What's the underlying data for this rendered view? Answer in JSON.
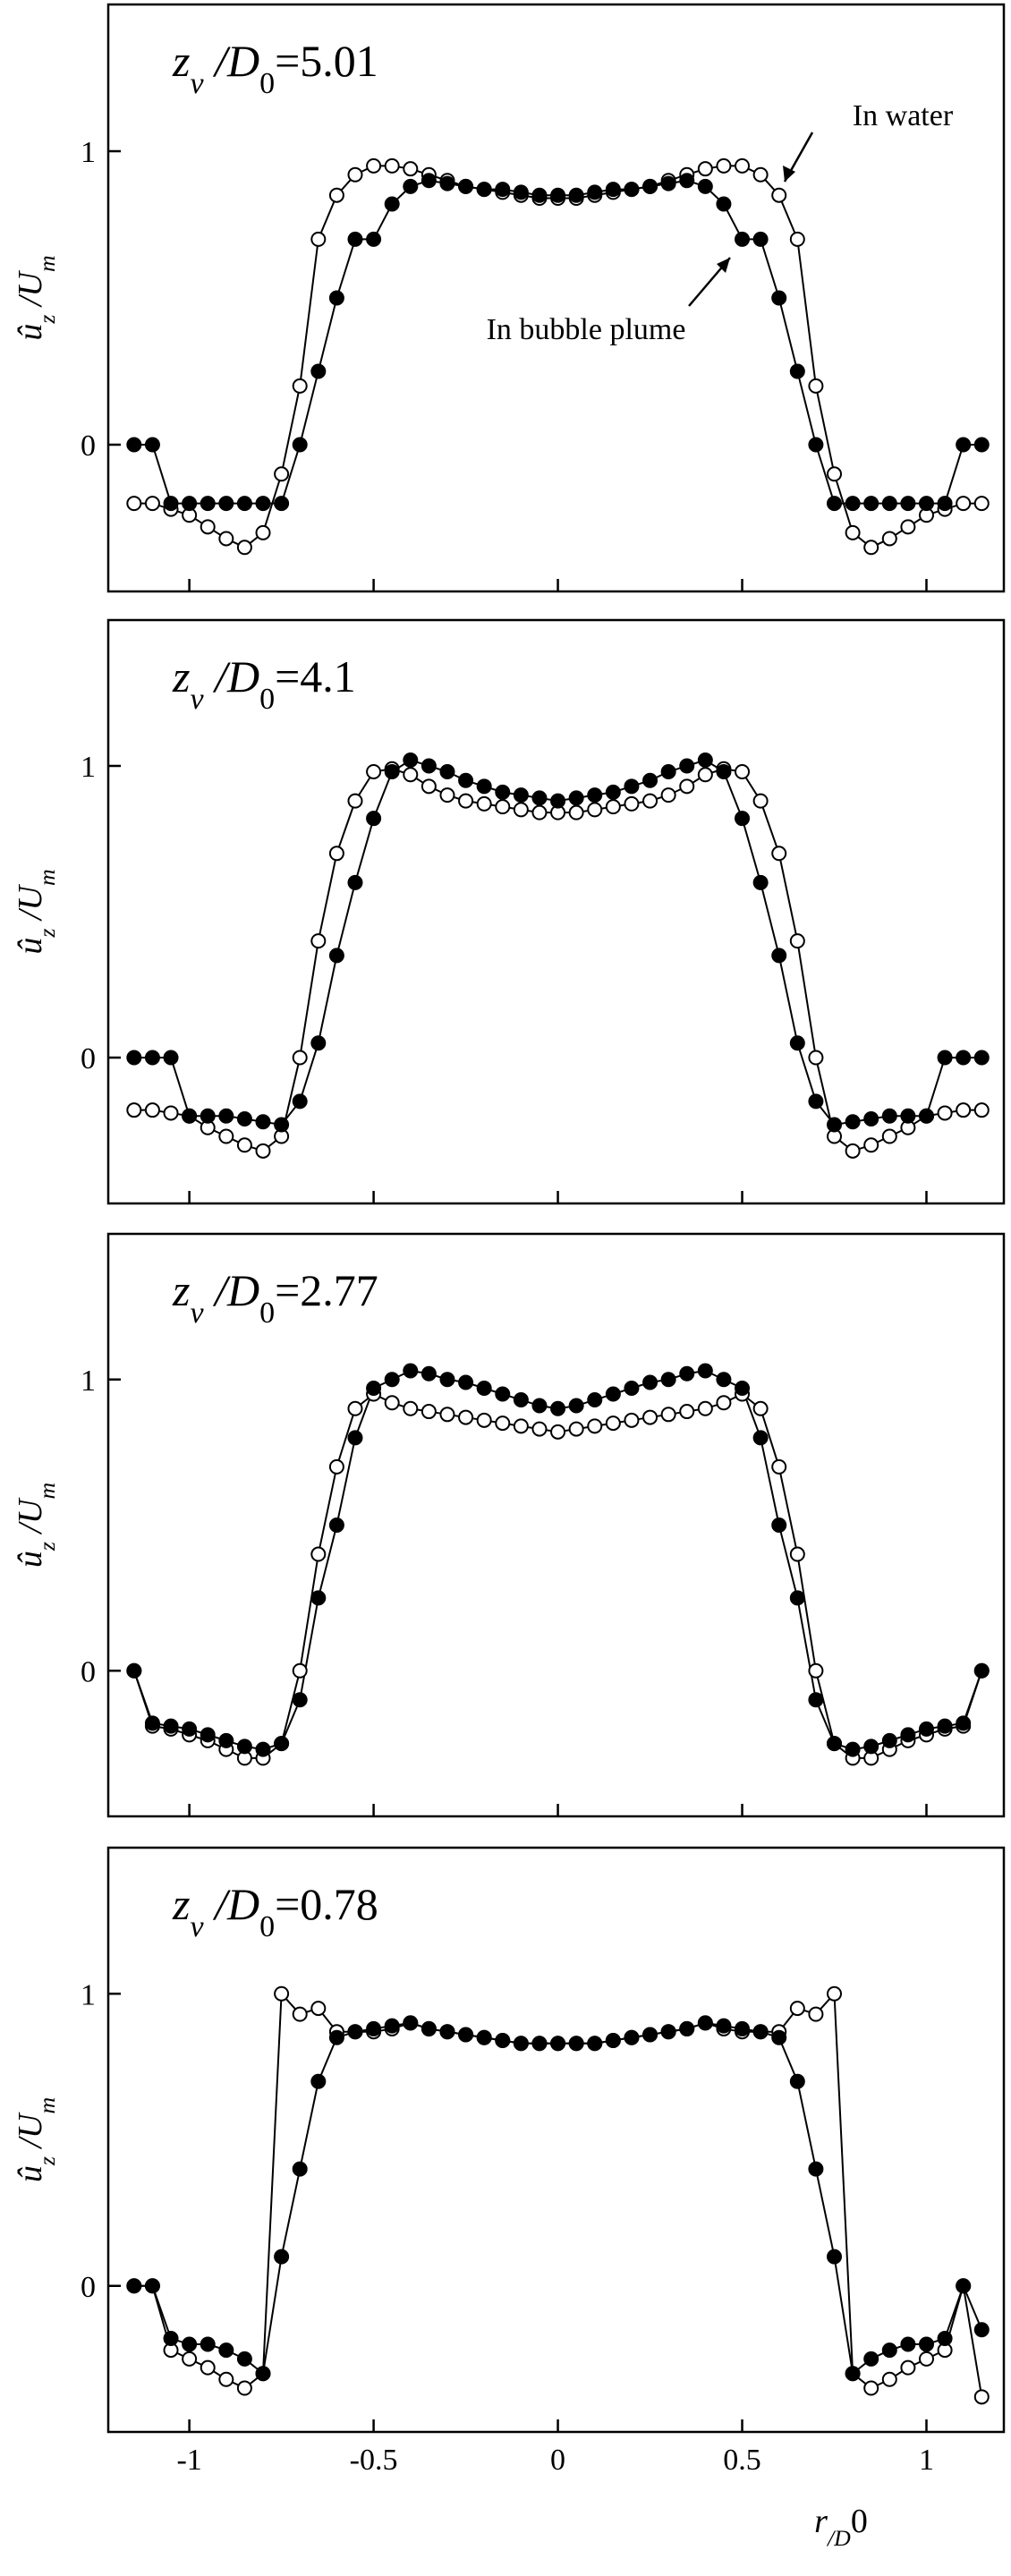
{
  "chart_data": [
    {
      "type": "line",
      "title": [
        "z",
        "v",
        " /D",
        "0",
        "=5.01"
      ],
      "ylabel": [
        "û",
        "z",
        " /U",
        "m"
      ],
      "annotations": [
        "In water",
        "In bubble plume"
      ],
      "x": [
        -1.15,
        -1.1,
        -1.05,
        -1,
        -0.95,
        -0.9,
        -0.85,
        -0.8,
        -0.75,
        -0.7,
        -0.65,
        -0.6,
        -0.55,
        -0.5,
        -0.45,
        -0.4,
        -0.35,
        -0.3,
        -0.25,
        -0.2,
        -0.15,
        -0.1,
        -0.05,
        0,
        0.05,
        0.1,
        0.15,
        0.2,
        0.25,
        0.3,
        0.35,
        0.4,
        0.45,
        0.5,
        0.55,
        0.6,
        0.65,
        0.7,
        0.75,
        0.8,
        0.85,
        0.9,
        0.95,
        1,
        1.05,
        1.1,
        1.15
      ],
      "series": [
        {
          "color": "#000000",
          "fill": "#ffffff",
          "values": [
            -0.2,
            -0.2,
            -0.22,
            -0.24,
            -0.28,
            -0.32,
            -0.35,
            -0.3,
            -0.1,
            0.2,
            0.7,
            0.85,
            0.92,
            0.95,
            0.95,
            0.94,
            0.92,
            0.9,
            0.88,
            0.87,
            0.86,
            0.85,
            0.84,
            0.84,
            0.84,
            0.85,
            0.86,
            0.87,
            0.88,
            0.9,
            0.92,
            0.94,
            0.95,
            0.95,
            0.92,
            0.85,
            0.7,
            0.2,
            -0.1,
            -0.3,
            -0.35,
            -0.32,
            -0.28,
            -0.24,
            -0.22,
            -0.2,
            -0.2
          ]
        },
        {
          "color": "#000000",
          "fill": "#000000",
          "values": [
            0,
            0,
            -0.2,
            -0.2,
            -0.2,
            -0.2,
            -0.2,
            -0.2,
            -0.2,
            0,
            0.25,
            0.5,
            0.7,
            0.7,
            0.82,
            0.88,
            0.9,
            0.89,
            0.88,
            0.87,
            0.87,
            0.86,
            0.85,
            0.85,
            0.85,
            0.86,
            0.87,
            0.87,
            0.88,
            0.89,
            0.9,
            0.88,
            0.82,
            0.7,
            0.7,
            0.5,
            0.25,
            0,
            -0.2,
            -0.2,
            -0.2,
            -0.2,
            -0.2,
            -0.2,
            -0.2,
            0,
            0
          ]
        }
      ],
      "xlim": [
        -1.22,
        1.21
      ],
      "ylim": [
        -0.5,
        1.5
      ],
      "xticks": [
        -1,
        -0.5,
        0,
        0.5,
        1
      ],
      "yticks": [
        0,
        1
      ]
    },
    {
      "type": "line",
      "title": [
        "z",
        "v",
        " /D",
        "0",
        "=4.1"
      ],
      "ylabel": [
        "û",
        "z",
        " /U",
        "m"
      ],
      "x": [
        -1.15,
        -1.1,
        -1.05,
        -1,
        -0.95,
        -0.9,
        -0.85,
        -0.8,
        -0.75,
        -0.7,
        -0.65,
        -0.6,
        -0.55,
        -0.5,
        -0.45,
        -0.4,
        -0.35,
        -0.3,
        -0.25,
        -0.2,
        -0.15,
        -0.1,
        -0.05,
        0,
        0.05,
        0.1,
        0.15,
        0.2,
        0.25,
        0.3,
        0.35,
        0.4,
        0.45,
        0.5,
        0.55,
        0.6,
        0.65,
        0.7,
        0.75,
        0.8,
        0.85,
        0.9,
        0.95,
        1,
        1.05,
        1.1,
        1.15
      ],
      "series": [
        {
          "color": "#000000",
          "fill": "#ffffff",
          "values": [
            -0.18,
            -0.18,
            -0.19,
            -0.2,
            -0.24,
            -0.27,
            -0.3,
            -0.32,
            -0.27,
            0,
            0.4,
            0.7,
            0.88,
            0.98,
            0.99,
            0.97,
            0.93,
            0.9,
            0.88,
            0.87,
            0.86,
            0.85,
            0.84,
            0.84,
            0.84,
            0.85,
            0.86,
            0.87,
            0.88,
            0.9,
            0.93,
            0.97,
            0.99,
            0.98,
            0.88,
            0.7,
            0.4,
            0,
            -0.27,
            -0.32,
            -0.3,
            -0.27,
            -0.24,
            -0.2,
            -0.19,
            -0.18,
            -0.18
          ]
        },
        {
          "color": "#000000",
          "fill": "#000000",
          "values": [
            0,
            0,
            0,
            -0.2,
            -0.2,
            -0.2,
            -0.21,
            -0.22,
            -0.23,
            -0.15,
            0.05,
            0.35,
            0.6,
            0.82,
            0.98,
            1.02,
            1,
            0.98,
            0.95,
            0.93,
            0.91,
            0.9,
            0.89,
            0.88,
            0.89,
            0.9,
            0.91,
            0.93,
            0.95,
            0.98,
            1,
            1.02,
            0.98,
            0.82,
            0.6,
            0.35,
            0.05,
            -0.15,
            -0.23,
            -0.22,
            -0.21,
            -0.2,
            -0.2,
            -0.2,
            0,
            0,
            0
          ]
        }
      ],
      "xlim": [
        -1.22,
        1.21
      ],
      "ylim": [
        -0.5,
        1.5
      ],
      "xticks": [
        -1,
        -0.5,
        0,
        0.5,
        1
      ],
      "yticks": [
        0,
        1
      ]
    },
    {
      "type": "line",
      "title": [
        "z",
        "v",
        " /D",
        "0",
        "=2.77"
      ],
      "ylabel": [
        "û",
        "z",
        " /U",
        "m"
      ],
      "x": [
        -1.15,
        -1.1,
        -1.05,
        -1,
        -0.95,
        -0.9,
        -0.85,
        -0.8,
        -0.75,
        -0.7,
        -0.65,
        -0.6,
        -0.55,
        -0.5,
        -0.45,
        -0.4,
        -0.35,
        -0.3,
        -0.25,
        -0.2,
        -0.15,
        -0.1,
        -0.05,
        0,
        0.05,
        0.1,
        0.15,
        0.2,
        0.25,
        0.3,
        0.35,
        0.4,
        0.45,
        0.5,
        0.55,
        0.6,
        0.65,
        0.7,
        0.75,
        0.8,
        0.85,
        0.9,
        0.95,
        1,
        1.05,
        1.1,
        1.15
      ],
      "series": [
        {
          "color": "#000000",
          "fill": "#ffffff",
          "values": [
            0,
            -0.19,
            -0.2,
            -0.22,
            -0.24,
            -0.27,
            -0.3,
            -0.3,
            -0.25,
            0,
            0.4,
            0.7,
            0.9,
            0.95,
            0.92,
            0.9,
            0.89,
            0.88,
            0.87,
            0.86,
            0.85,
            0.84,
            0.83,
            0.82,
            0.83,
            0.84,
            0.85,
            0.86,
            0.87,
            0.88,
            0.89,
            0.9,
            0.92,
            0.95,
            0.9,
            0.7,
            0.4,
            0,
            -0.25,
            -0.3,
            -0.3,
            -0.27,
            -0.24,
            -0.22,
            -0.2,
            -0.19,
            0
          ]
        },
        {
          "color": "#000000",
          "fill": "#000000",
          "values": [
            0,
            -0.18,
            -0.19,
            -0.2,
            -0.22,
            -0.24,
            -0.26,
            -0.27,
            -0.25,
            -0.1,
            0.25,
            0.5,
            0.8,
            0.97,
            1,
            1.03,
            1.02,
            1,
            0.99,
            0.97,
            0.95,
            0.93,
            0.91,
            0.9,
            0.91,
            0.93,
            0.95,
            0.97,
            0.99,
            1,
            1.02,
            1.03,
            1,
            0.97,
            0.8,
            0.5,
            0.25,
            -0.1,
            -0.25,
            -0.27,
            -0.26,
            -0.24,
            -0.22,
            -0.2,
            -0.19,
            -0.18,
            0
          ]
        }
      ],
      "xlim": [
        -1.22,
        1.21
      ],
      "ylim": [
        -0.5,
        1.5
      ],
      "xticks": [
        -1,
        -0.5,
        0,
        0.5,
        1
      ],
      "yticks": [
        0,
        1
      ]
    },
    {
      "type": "line",
      "title": [
        "z",
        "v",
        " /D",
        "0",
        "=0.78"
      ],
      "ylabel": [
        "û",
        "z",
        " /U",
        "m"
      ],
      "xlabel": [
        "r",
        "/D",
        "0"
      ],
      "x": [
        -1.15,
        -1.1,
        -1.05,
        -1,
        -0.95,
        -0.9,
        -0.85,
        -0.8,
        -0.75,
        -0.7,
        -0.65,
        -0.6,
        -0.55,
        -0.5,
        -0.45,
        -0.4,
        -0.35,
        -0.3,
        -0.25,
        -0.2,
        -0.15,
        -0.1,
        -0.05,
        0,
        0.05,
        0.1,
        0.15,
        0.2,
        0.25,
        0.3,
        0.35,
        0.4,
        0.45,
        0.5,
        0.55,
        0.6,
        0.65,
        0.7,
        0.75,
        0.8,
        0.85,
        0.9,
        0.95,
        1,
        1.05,
        1.1,
        1.15
      ],
      "series": [
        {
          "color": "#000000",
          "fill": "#ffffff",
          "values": [
            0,
            0,
            -0.22,
            -0.25,
            -0.28,
            -0.32,
            -0.35,
            -0.3,
            1,
            0.93,
            0.95,
            0.87,
            0.87,
            0.87,
            0.88,
            0.9,
            0.88,
            0.87,
            0.86,
            0.85,
            0.84,
            0.83,
            0.83,
            0.83,
            0.83,
            0.83,
            0.84,
            0.85,
            0.86,
            0.87,
            0.88,
            0.9,
            0.88,
            0.87,
            0.87,
            0.87,
            0.95,
            0.93,
            1,
            -0.3,
            -0.35,
            -0.32,
            -0.28,
            -0.25,
            -0.22,
            0,
            -0.38
          ]
        },
        {
          "color": "#000000",
          "fill": "#000000",
          "values": [
            0,
            0,
            -0.18,
            -0.2,
            -0.2,
            -0.22,
            -0.25,
            -0.3,
            0.1,
            0.4,
            0.7,
            0.85,
            0.87,
            0.88,
            0.89,
            0.9,
            0.88,
            0.87,
            0.86,
            0.85,
            0.84,
            0.83,
            0.83,
            0.83,
            0.83,
            0.83,
            0.84,
            0.85,
            0.86,
            0.87,
            0.88,
            0.9,
            0.89,
            0.88,
            0.87,
            0.85,
            0.7,
            0.4,
            0.1,
            -0.3,
            -0.25,
            -0.22,
            -0.2,
            -0.2,
            -0.18,
            0,
            -0.15
          ]
        }
      ],
      "xlim": [
        -1.22,
        1.21
      ],
      "ylim": [
        -0.5,
        1.5
      ],
      "xticks": [
        -1,
        -0.5,
        0,
        0.5,
        1
      ],
      "yticks": [
        0,
        1
      ]
    }
  ]
}
